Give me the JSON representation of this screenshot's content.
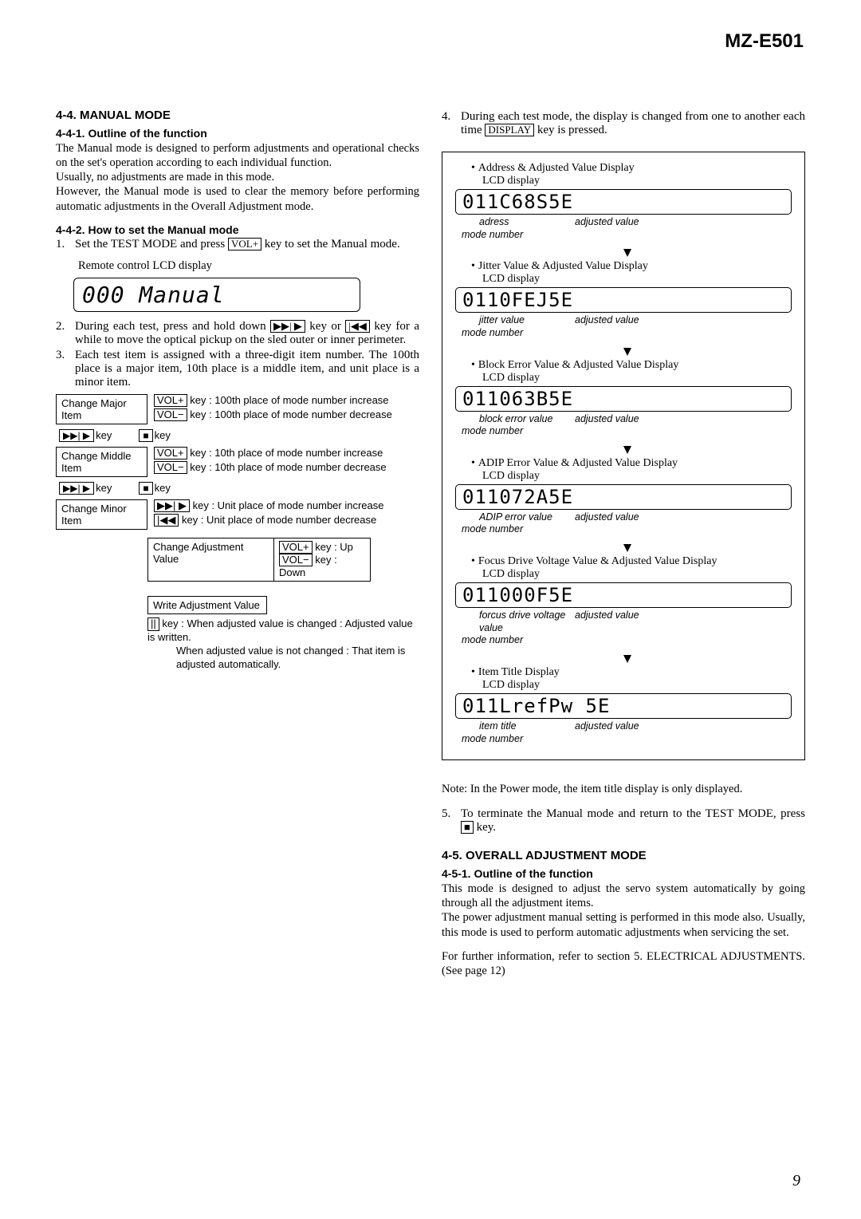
{
  "header": {
    "model": "MZ-E501"
  },
  "sec44": {
    "title": "4-4. MANUAL MODE",
    "sub1": "4-4-1. Outline of the function",
    "p1": "The Manual mode is designed to perform adjustments and operational checks on the set's operation according to each individual function.",
    "p2": "Usually, no adjustments are made in this mode.",
    "p3": "However, the Manual mode is used to clear the memory before performing automatic adjustments in the Overall Adjustment mode.",
    "sub2": "4-4-2. How to set the Manual mode",
    "step1_a": "Set the TEST MODE and press ",
    "step1_key": "VOL+",
    "step1_b": " key to set the Manual mode.",
    "remote_label": "Remote control LCD display",
    "remote_lcd": "000 Manual",
    "step2_a": "During each test, press and hold down ",
    "step2_k1": "▶▶| ▶",
    "step2_mid": " key or ",
    "step2_k2": "|◀◀",
    "step2_b": " key for a while to move the optical pickup on the sled outer or inner perimeter.",
    "step3": "Each test item is assigned with a three-digit item number. The 100th place is a major item, 10th place is a middle item, and unit place is a minor item."
  },
  "tree": {
    "major": "Change Major Item",
    "major_r1": " key : 100th place of mode number increase",
    "major_r2": " key : 100th place of mode number decrease",
    "mid": "Change Middle Item",
    "mid_r1": " key : 10th place of mode number increase",
    "mid_r2": " key : 10th place of mode number decrease",
    "minor": "Change Minor Item",
    "minor_r1": " key : Unit place of mode number increase",
    "minor_r2": " key : Unit place of mode number decrease",
    "adj_l": "Change Adjustment Value",
    "adj_r1": " key : Up",
    "adj_r2": " key : Down",
    "write": "Write Adjustment Value",
    "btn_ffwd": "▶▶| ▶",
    "btn_stop": "■",
    "btn_prev": "|◀◀",
    "btn_pause": "||",
    "volp": "VOL+",
    "volm": "VOL−",
    "bottom1": " key : When adjusted value is changed : Adjusted value is written.",
    "bottom2": "When adjusted value is not changed : That item is adjusted automatically."
  },
  "right": {
    "step4_a": "During each test mode, the display is changed from one to another each time ",
    "step4_key": "DISPLAY",
    "step4_b": " key is pressed.",
    "groups": [
      {
        "title": "Address & Adjusted Value Display",
        "sub": "LCD display",
        "lcd": "011C68S5E",
        "label1": "adress",
        "label2": "adjusted value"
      },
      {
        "title": "Jitter Value & Adjusted Value Display",
        "sub": "LCD display",
        "lcd": "0110FEJ5E",
        "label1": "jitter value",
        "label2": "adjusted value"
      },
      {
        "title": "Block Error Value & Adjusted Value Display",
        "sub": "LCD display",
        "lcd": "011063B5E",
        "label1": "block error value",
        "label2": "adjusted value"
      },
      {
        "title": "ADIP Error Value & Adjusted Value Display",
        "sub": "LCD display",
        "lcd": "011072A5E",
        "label1": "ADIP error value",
        "label2": "adjusted value"
      },
      {
        "title": "Focus Drive Voltage Value & Adjusted Value Display",
        "sub": "LCD display",
        "lcd": "011000F5E",
        "label1": "forcus drive voltage value",
        "label2": "adjusted value"
      },
      {
        "title": "Item Title Display",
        "sub": "LCD display",
        "lcd": "011LrefPw 5E",
        "label1": "item title",
        "label2": "adjusted value"
      }
    ],
    "mode_number": "mode number",
    "note": "Note:  In the Power mode, the item title display is only displayed.",
    "step5_a": "To terminate the Manual mode and return to the TEST MODE, press ",
    "step5_key": "■",
    "step5_b": " key."
  },
  "sec45": {
    "title": "4-5.  OVERALL ADJUSTMENT MODE",
    "sub1": "4-5-1.  Outline of the function",
    "p1": "This mode is designed to adjust the servo system automatically by going through all the adjustment items.",
    "p2": "The power adjustment manual setting is performed in this mode also. Usually, this mode is used to perform automatic adjustments when servicing the set.",
    "p3": "For further information, refer to section 5. ELECTRICAL ADJUSTMENTS. (See page 12)"
  },
  "page_number": "9"
}
